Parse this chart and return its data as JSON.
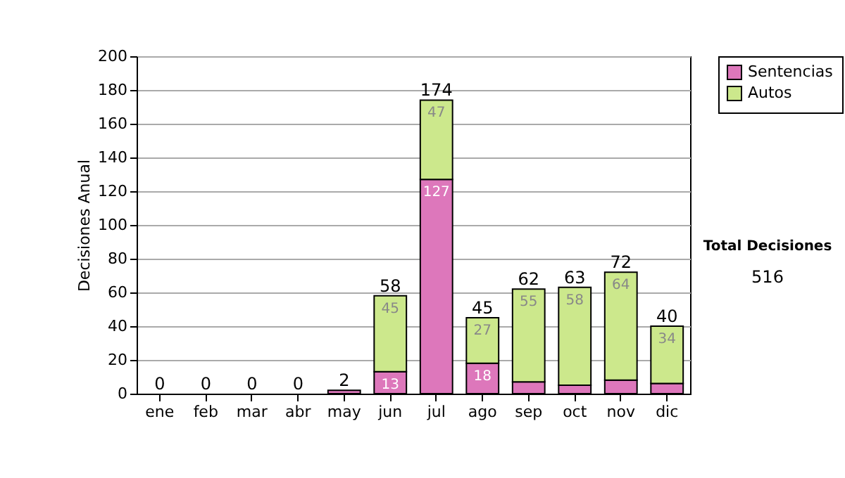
{
  "chart_data": {
    "type": "bar",
    "stacked": true,
    "ylabel": "Decisiones Anual",
    "categories": [
      "ene",
      "feb",
      "mar",
      "abr",
      "may",
      "jun",
      "jul",
      "ago",
      "sep",
      "oct",
      "nov",
      "dic"
    ],
    "series": [
      {
        "name": "Sentencias",
        "color": "#dd77bb",
        "values": [
          0,
          0,
          0,
          0,
          2,
          13,
          127,
          18,
          7,
          5,
          8,
          6
        ],
        "value_labels": [
          null,
          null,
          null,
          null,
          null,
          "13",
          "127",
          "18",
          null,
          null,
          null,
          null
        ]
      },
      {
        "name": "Autos",
        "color": "#cce88c",
        "values": [
          0,
          0,
          0,
          0,
          0,
          45,
          47,
          27,
          55,
          58,
          64,
          34
        ],
        "value_labels": [
          null,
          null,
          null,
          null,
          null,
          "45",
          "47",
          "27",
          "55",
          "58",
          "64",
          "34"
        ]
      }
    ],
    "totals": [
      "0",
      "0",
      "0",
      "0",
      "2",
      "58",
      "174",
      "45",
      "62",
      "63",
      "72",
      "40"
    ],
    "ylim": [
      0,
      200
    ],
    "yticks": [
      0,
      20,
      40,
      60,
      80,
      100,
      120,
      140,
      160,
      180,
      200
    ],
    "grid": "y",
    "legend": "right",
    "annotations": [
      "Total Decisiones",
      "516"
    ]
  }
}
